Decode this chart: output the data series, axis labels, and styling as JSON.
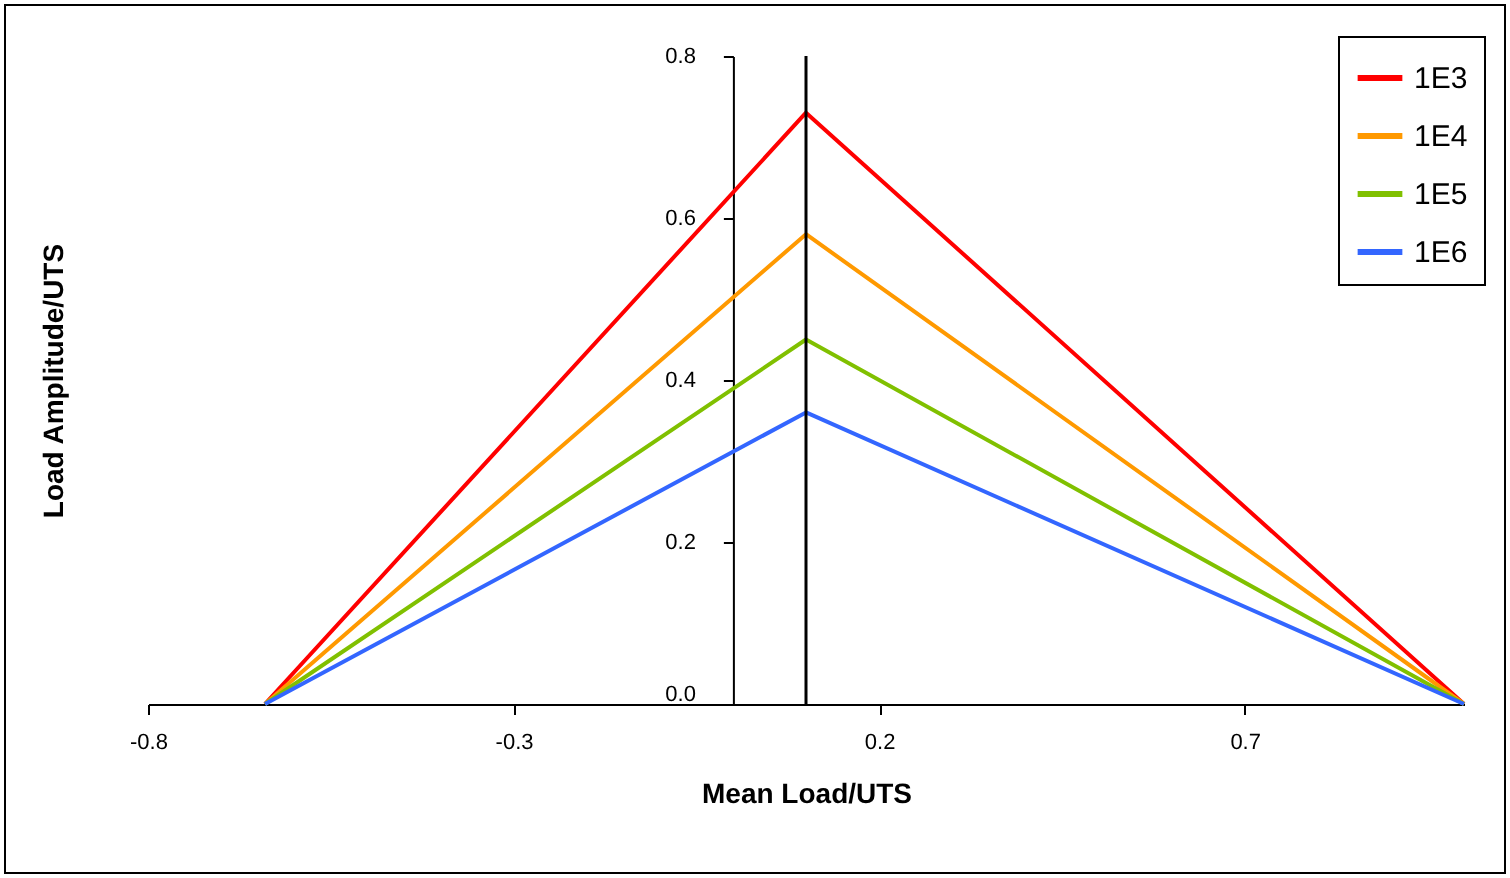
{
  "chart_data": {
    "type": "line",
    "xlabel": "Mean Load/UTS",
    "ylabel": "Load Amplitude/UTS",
    "x": [
      -0.64,
      0.1,
      1.0
    ],
    "series": [
      {
        "name": "1E3",
        "color": "#ff0000",
        "values": [
          0,
          0.73,
          0
        ]
      },
      {
        "name": "1E4",
        "color": "#ff9900",
        "values": [
          0,
          0.58,
          0
        ]
      },
      {
        "name": "1E5",
        "color": "#80c000",
        "values": [
          0,
          0.45,
          0
        ]
      },
      {
        "name": "1E6",
        "color": "#3366ff",
        "values": [
          0,
          0.36,
          0
        ]
      }
    ],
    "xlim": [
      -0.8,
      1.0
    ],
    "xticks": [
      -0.8,
      -0.3,
      0.2,
      0.7
    ],
    "ylim": [
      0,
      0.8
    ],
    "yticks": [
      {
        "value": 0,
        "label": "0.0"
      },
      0.2,
      0.4,
      0.6,
      0.8
    ],
    "ref_lines": [
      {
        "axis": "x",
        "value": 0.1,
        "color": "#000000"
      }
    ],
    "legend": "top right",
    "grid": false,
    "marker": "none",
    "line_style": "solid"
  }
}
